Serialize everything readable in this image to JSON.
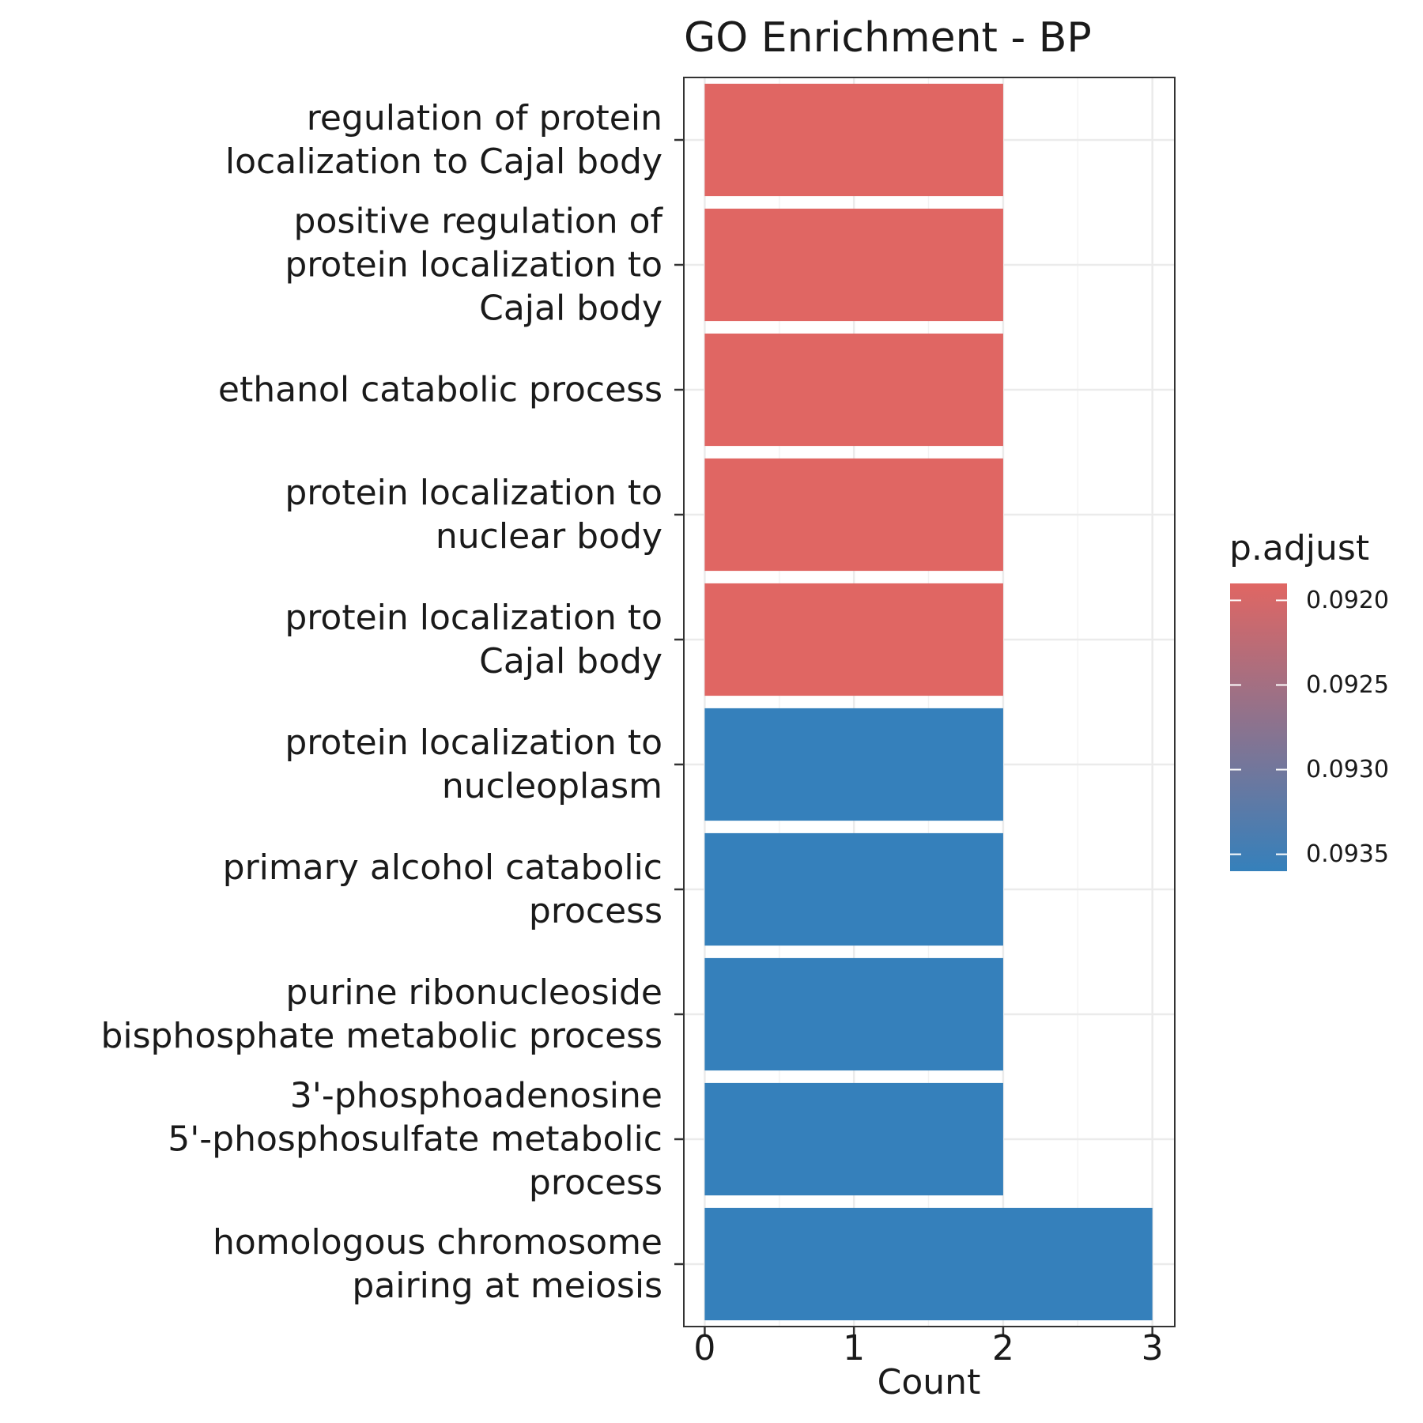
{
  "chart_data": {
    "type": "bar",
    "orientation": "horizontal",
    "title": "GO Enrichment - BP",
    "xlabel": "Count",
    "ylabel": "",
    "xlim": [
      -0.14,
      3.15
    ],
    "xticks": [
      "0",
      "1",
      "2",
      "3"
    ],
    "grid": true,
    "legend_placement": "right",
    "categories": [
      {
        "lines": [
          "regulation of protein",
          "localization to Cajal body"
        ]
      },
      {
        "lines": [
          "positive regulation of",
          "protein localization to",
          "Cajal body"
        ]
      },
      {
        "lines": [
          "ethanol catabolic process"
        ]
      },
      {
        "lines": [
          "protein localization to",
          "nuclear body"
        ]
      },
      {
        "lines": [
          "protein localization to",
          "Cajal body"
        ]
      },
      {
        "lines": [
          "protein localization to",
          "nucleoplasm"
        ]
      },
      {
        "lines": [
          "primary alcohol catabolic",
          "process"
        ]
      },
      {
        "lines": [
          "purine ribonucleoside",
          "bisphosphate metabolic process"
        ]
      },
      {
        "lines": [
          "3'-phosphoadenosine",
          "5'-phosphosulfate metabolic",
          "process"
        ]
      },
      {
        "lines": [
          "homologous chromosome",
          "pairing at meiosis"
        ]
      }
    ],
    "values": [
      2,
      2,
      2,
      2,
      2,
      2,
      2,
      2,
      2,
      3
    ],
    "p_adjust": [
      0.0919,
      0.0919,
      0.0919,
      0.0919,
      0.0919,
      0.0936,
      0.0936,
      0.0936,
      0.0936,
      0.0936
    ],
    "colorbar": {
      "title": "p.adjust",
      "ticks": [
        "0.0920",
        "0.0925",
        "0.0930",
        "0.0935"
      ],
      "tick_values": [
        0.092,
        0.0925,
        0.093,
        0.0935
      ],
      "range": [
        0.0919,
        0.0936
      ],
      "low_color": "#E06663",
      "high_color": "#3580BB"
    }
  }
}
